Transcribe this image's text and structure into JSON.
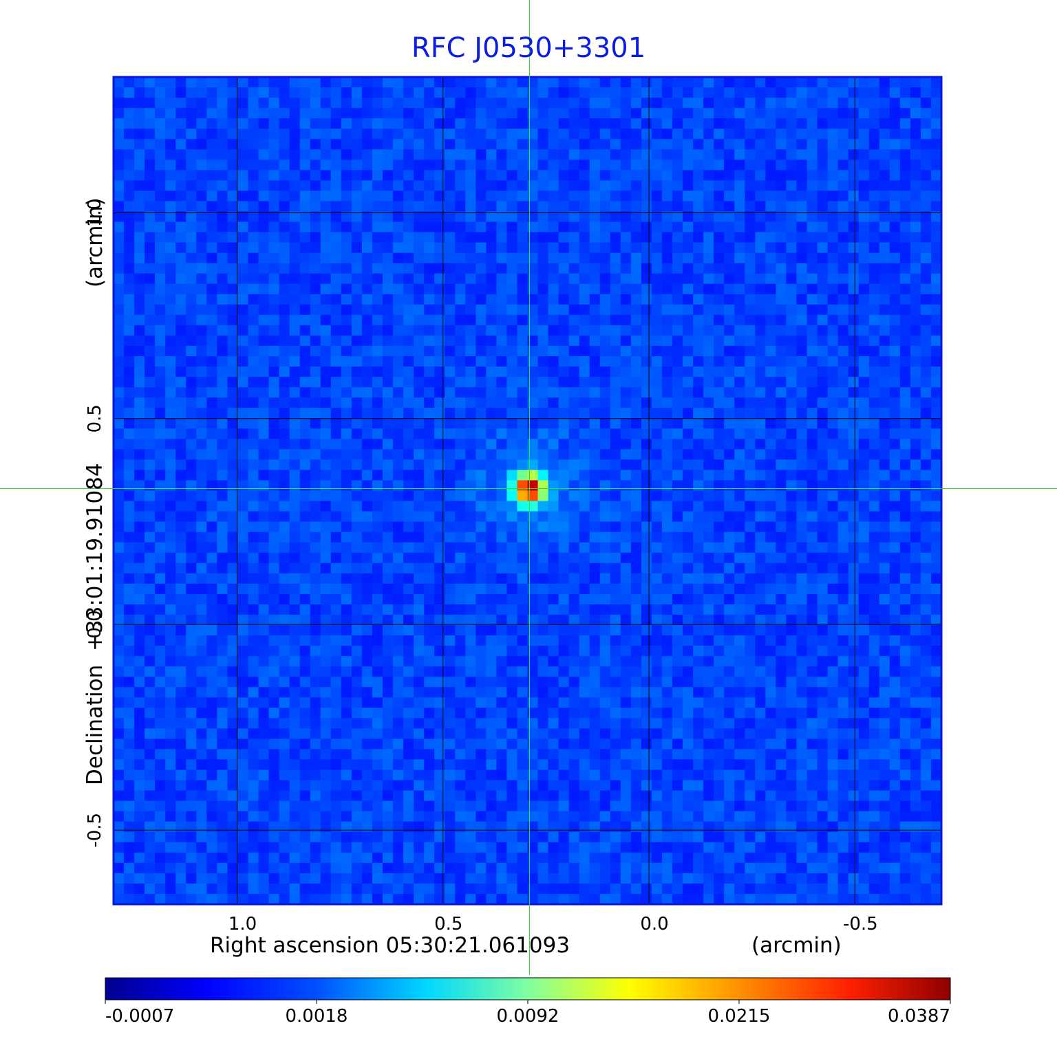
{
  "chart_data": {
    "type": "heatmap",
    "title": "RFC J0530+3301",
    "colormap": "jet",
    "xlabel": "Right ascension  05:30:21.061093",
    "xlabel_unit": "(arcmin)",
    "ylabel": "Declination  +33:01:19.91084",
    "ylabel_unit": "(arcmin)",
    "xlim": [
      1.3,
      -0.71
    ],
    "ylim": [
      -0.68,
      1.33
    ],
    "x_ticks": [
      1.0,
      0.5,
      0.0,
      -0.5
    ],
    "x_tick_labels": [
      "1.0",
      "0.5",
      "0.0",
      "-0.5"
    ],
    "y_ticks": [
      1.0,
      0.5,
      0.0,
      -0.5
    ],
    "y_tick_labels": [
      "1.0",
      "0.5",
      "0.0",
      "-0.5"
    ],
    "grid": true,
    "grid_color": "#000000",
    "crosshair": {
      "x": 0.29,
      "y": 0.33,
      "color": "#33dd33"
    },
    "source_peak": {
      "x": 0.29,
      "y": 0.33,
      "value": 0.0387
    },
    "noise_level": 0.0018,
    "colorbar": {
      "orientation": "horizontal",
      "tick_values": [
        -0.0007,
        0.0018,
        0.0092,
        0.0215,
        0.0387
      ],
      "tick_labels": [
        "-0.0007",
        "0.0018",
        "0.0092",
        "0.0215",
        "0.0387"
      ]
    },
    "colors": {
      "title": "#0b1ee0",
      "frame": "#0a16d8",
      "background_map": "#1a55f0"
    }
  }
}
